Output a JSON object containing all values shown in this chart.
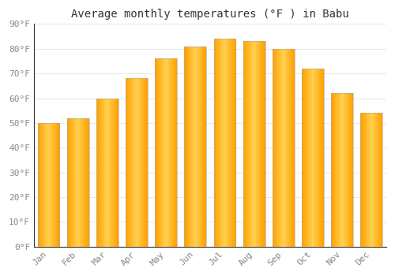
{
  "title": "Average monthly temperatures (°F ) in Babu",
  "months": [
    "Jan",
    "Feb",
    "Mar",
    "Apr",
    "May",
    "Jun",
    "Jul",
    "Aug",
    "Sep",
    "Oct",
    "Nov",
    "Dec"
  ],
  "values": [
    50,
    52,
    60,
    68,
    76,
    81,
    84,
    83,
    80,
    72,
    62,
    54
  ],
  "bar_color_center": "#FFD050",
  "bar_color_edge": "#FFA000",
  "bar_edge_color": "#BBBBBB",
  "background_color": "#FFFFFF",
  "plot_bg_color": "#FFFFFF",
  "grid_color": "#E8E8E8",
  "ylim": [
    0,
    90
  ],
  "yticks": [
    0,
    10,
    20,
    30,
    40,
    50,
    60,
    70,
    80,
    90
  ],
  "ytick_labels": [
    "0°F",
    "10°F",
    "20°F",
    "30°F",
    "40°F",
    "50°F",
    "60°F",
    "70°F",
    "80°F",
    "90°F"
  ],
  "title_fontsize": 10,
  "tick_fontsize": 8,
  "tick_color": "#888888",
  "font_family": "monospace",
  "bar_width": 0.75
}
